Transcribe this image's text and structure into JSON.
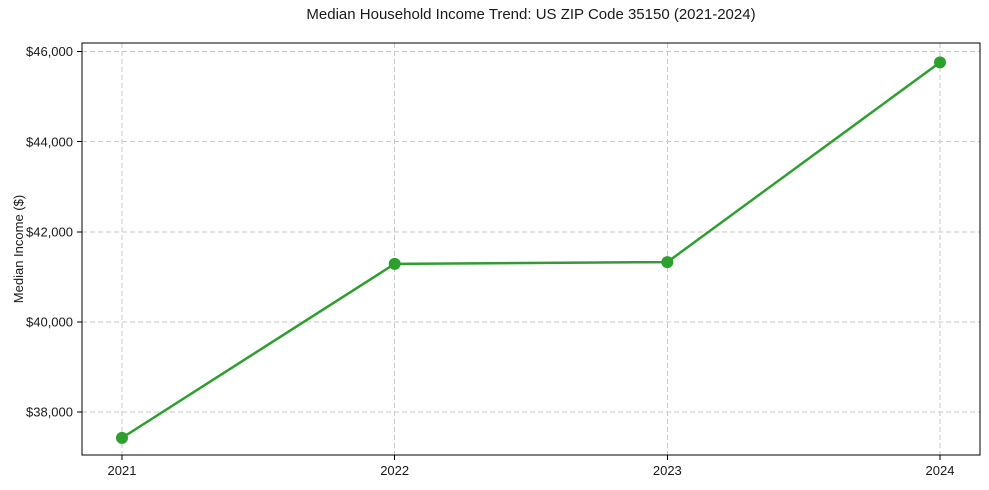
{
  "chart_data": {
    "type": "line",
    "title": "Median Household Income Trend: US ZIP Code 35150 (2021-2024)",
    "xlabel": "",
    "ylabel": "Median Income ($)",
    "categories": [
      2021,
      2022,
      2023,
      2024
    ],
    "xtick_labels": [
      "2021",
      "2022",
      "2023",
      "2024"
    ],
    "series": [
      {
        "name": "median_household_income",
        "values": [
          37430,
          41290,
          41330,
          45760
        ],
        "color": "#2ca02c",
        "line_width": 2.5,
        "marker": "circle",
        "marker_radius": 6
      }
    ],
    "yticks": [
      38000,
      40000,
      42000,
      44000,
      46000
    ],
    "ytick_labels": [
      "$38,000",
      "$40,000",
      "$42,000",
      "$44,000",
      "$46,000"
    ],
    "ylim": [
      37050,
      46190
    ],
    "grid": true,
    "grid_line_style": "dashed",
    "legend": "none",
    "colors": {
      "line": "#2ca02c",
      "grid": "#c9c9c9",
      "spine": "#000000",
      "tick": "#000000",
      "text": "#1a1a1a",
      "background": "#ffffff"
    }
  }
}
